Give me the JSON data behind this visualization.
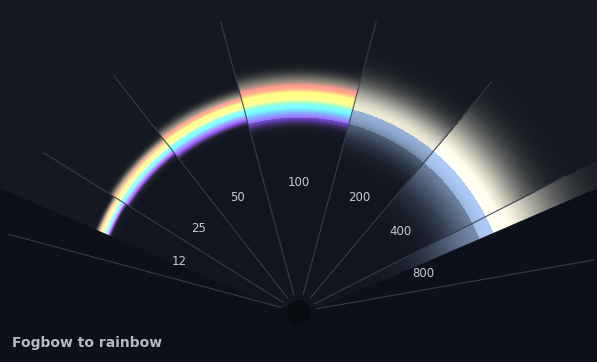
{
  "title": "Fogbow to rainbow",
  "title_fontsize": 10,
  "title_color": "#b8b8c8",
  "bg_color": "#141820",
  "fig_width": 5.97,
  "fig_height": 3.62,
  "labels": [
    "12",
    "25",
    "50",
    "100",
    "200",
    "400",
    "800"
  ],
  "label_angles_deg": [
    157,
    140,
    118,
    90,
    62,
    38,
    17
  ],
  "divider_angles_deg": [
    165,
    148,
    128,
    105,
    75,
    50,
    27,
    10
  ],
  "text_color": "#c8c8d8",
  "text_fontsize": 8.5
}
